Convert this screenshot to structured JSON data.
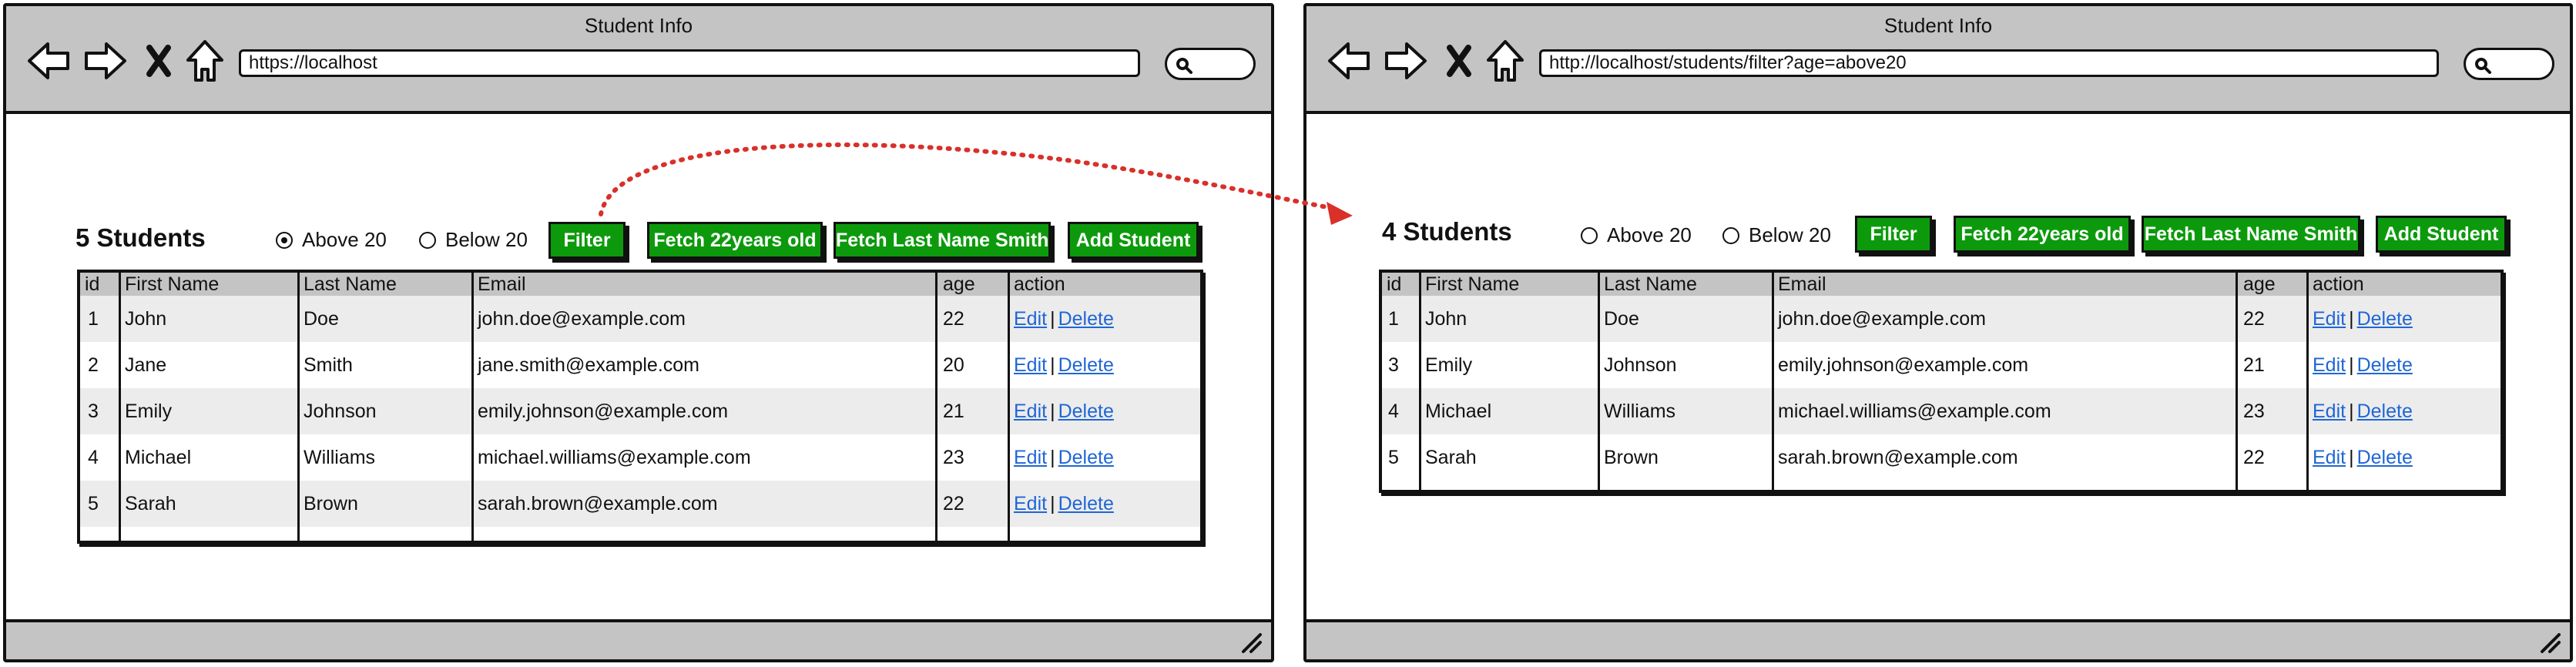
{
  "left": {
    "window_title": "Student Info",
    "url": "https://localhost",
    "heading": "5 Students",
    "radio_above": "Above 20",
    "radio_below": "Below 20",
    "selected_radio": "above",
    "btn_filter": "Filter",
    "btn_fetch22": "Fetch 22years old",
    "btn_fetch_smith": "Fetch Last Name Smith",
    "btn_add": "Add Student",
    "columns": [
      "id",
      "First Name",
      "Last Name",
      "Email",
      "age",
      "action"
    ],
    "rows": [
      {
        "id": "1",
        "first": "John",
        "last": "Doe",
        "email": "john.doe@example.com",
        "age": "22"
      },
      {
        "id": "2",
        "first": "Jane",
        "last": "Smith",
        "email": "jane.smith@example.com",
        "age": "20"
      },
      {
        "id": "3",
        "first": "Emily",
        "last": "Johnson",
        "email": "emily.johnson@example.com",
        "age": "21"
      },
      {
        "id": "4",
        "first": "Michael",
        "last": "Williams",
        "email": "michael.williams@example.com",
        "age": "23"
      },
      {
        "id": "5",
        "first": "Sarah",
        "last": "Brown",
        "email": "sarah.brown@example.com",
        "age": "22"
      }
    ]
  },
  "right": {
    "window_title": "Student Info",
    "url": "http://localhost/students/filter?age=above20",
    "heading": "4 Students",
    "radio_above": "Above 20",
    "radio_below": "Below 20",
    "selected_radio": "none",
    "btn_filter": "Filter",
    "btn_fetch22": "Fetch 22years old",
    "btn_fetch_smith": "Fetch Last Name Smith",
    "btn_add": "Add Student",
    "columns": [
      "id",
      "First Name",
      "Last Name",
      "Email",
      "age",
      "action"
    ],
    "rows": [
      {
        "id": "1",
        "first": "John",
        "last": "Doe",
        "email": "john.doe@example.com",
        "age": "22"
      },
      {
        "id": "3",
        "first": "Emily",
        "last": "Johnson",
        "email": "emily.johnson@example.com",
        "age": "21"
      },
      {
        "id": "4",
        "first": "Michael",
        "last": "Williams",
        "email": "michael.williams@example.com",
        "age": "23"
      },
      {
        "id": "5",
        "first": "Sarah",
        "last": "Brown",
        "email": "sarah.brown@example.com",
        "age": "22"
      }
    ]
  },
  "action_edit": "Edit",
  "action_delete": "Delete",
  "action_separator": "|",
  "colors": {
    "button_green": "#0c9a0c",
    "link_blue": "#1f66d6",
    "arrow_red": "#d9302a",
    "chrome_gray": "#c4c4c4"
  },
  "icons": [
    "back-arrow-icon",
    "forward-arrow-icon",
    "close-x-icon",
    "home-icon",
    "search-icon",
    "resize-grip-icon"
  ]
}
